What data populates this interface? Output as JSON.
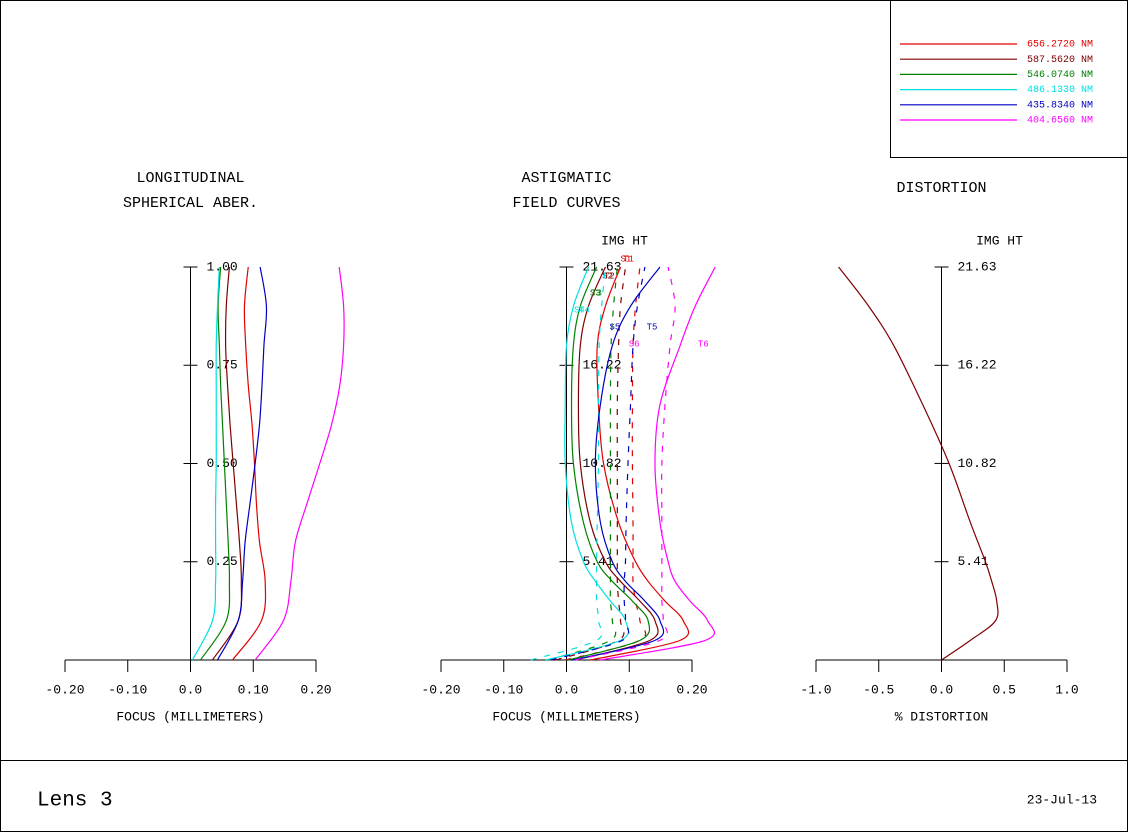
{
  "chart_data": [
    {
      "type": "line",
      "title": [
        "LONGITUDINAL",
        "SPHERICAL ABER."
      ],
      "xlabel": "FOCUS (MILLIMETERS)",
      "xlim": [
        -0.2,
        0.2
      ],
      "xticks": [
        {
          "value": -0.2,
          "label": "-0.20"
        },
        {
          "value": -0.1,
          "label": "-0.10"
        },
        {
          "value": 0,
          "label": "0.0"
        },
        {
          "value": 0.1,
          "label": "0.10"
        },
        {
          "value": 0.2,
          "label": "0.20"
        }
      ],
      "ylim": [
        0,
        1
      ],
      "yticks": [
        {
          "value": 0.25,
          "label": "0.25"
        },
        {
          "value": 0.5,
          "label": "0.50"
        },
        {
          "value": 0.75,
          "label": "0.75"
        },
        {
          "value": 1,
          "label": "1.00"
        }
      ],
      "legend": "upper right",
      "y": [
        0,
        0.1,
        0.2,
        0.3,
        0.4,
        0.5,
        0.6,
        0.7,
        0.8,
        0.9,
        1
      ],
      "series": [
        {
          "name": "656.2720 NM",
          "color": "#e00000",
          "values": [
            0.067,
            0.113,
            0.119,
            0.11,
            0.105,
            0.102,
            0.098,
            0.092,
            0.088,
            0.086,
            0.092
          ]
        },
        {
          "name": "587.5620 NM",
          "color": "#800000",
          "values": [
            0.035,
            0.076,
            0.081,
            0.078,
            0.073,
            0.068,
            0.063,
            0.059,
            0.056,
            0.057,
            0.062
          ]
        },
        {
          "name": "546.0740 NM",
          "color": "#008000",
          "values": [
            0.016,
            0.057,
            0.062,
            0.06,
            0.057,
            0.054,
            0.051,
            0.048,
            0.046,
            0.044,
            0.048
          ]
        },
        {
          "name": "486.1330 NM",
          "color": "#00e0e0",
          "values": [
            0.003,
            0.035,
            0.04,
            0.04,
            0.04,
            0.041,
            0.041,
            0.041,
            0.041,
            0.043,
            0.046
          ]
        },
        {
          "name": "435.8340 NM",
          "color": "#0000c0",
          "values": [
            0.043,
            0.076,
            0.083,
            0.087,
            0.095,
            0.103,
            0.11,
            0.114,
            0.117,
            0.121,
            0.111
          ]
        },
        {
          "name": "404.6560 NM",
          "color": "#ff00ff",
          "values": [
            0.103,
            0.148,
            0.16,
            0.167,
            0.186,
            0.206,
            0.225,
            0.238,
            0.244,
            0.244,
            0.237
          ]
        }
      ]
    },
    {
      "type": "line",
      "title": [
        "ASTIGMATIC",
        "FIELD CURVES"
      ],
      "xlabel": "FOCUS (MILLIMETERS)",
      "ylabel": "IMG HT",
      "xlim": [
        -0.2,
        0.2
      ],
      "xticks": [
        {
          "value": -0.2,
          "label": "-0.20"
        },
        {
          "value": -0.1,
          "label": "-0.10"
        },
        {
          "value": 0,
          "label": "0.0"
        },
        {
          "value": 0.1,
          "label": "0.10"
        },
        {
          "value": 0.2,
          "label": "0.20"
        }
      ],
      "ylim": [
        0,
        21.63
      ],
      "yticks": [
        5.41,
        10.82,
        16.22,
        21.63
      ],
      "y": [
        0,
        1.08,
        2.16,
        3.24,
        4.33,
        5.41,
        7.57,
        10.82,
        14.06,
        17.3,
        19.47,
        21.63
      ],
      "series": [
        {
          "name": "S1",
          "color": "#e00000",
          "dashed": true,
          "values": [
            -0.002,
            0.117,
            0.117,
            0.11,
            0.106,
            0.106,
            0.106,
            0.105,
            0.105,
            0.106,
            0.11,
            0.117
          ]
        },
        {
          "name": "T1",
          "color": "#e00000",
          "dashed": false,
          "values": [
            0.038,
            0.181,
            0.186,
            0.157,
            0.13,
            0.11,
            0.083,
            0.059,
            0.051,
            0.049,
            0.062,
            0.086
          ]
        },
        {
          "name": "S2",
          "color": "#800000",
          "dashed": true,
          "values": [
            -0.017,
            0.083,
            0.086,
            0.083,
            0.081,
            0.081,
            0.081,
            0.081,
            0.081,
            0.083,
            0.086,
            0.094
          ]
        },
        {
          "name": "T2",
          "color": "#800000",
          "dashed": false,
          "values": [
            0.014,
            0.133,
            0.141,
            0.117,
            0.086,
            0.062,
            0.038,
            0.022,
            0.019,
            0.022,
            0.035,
            0.062
          ]
        },
        {
          "name": "S3",
          "color": "#008000",
          "dashed": true,
          "values": [
            -0.029,
            0.07,
            0.073,
            0.07,
            0.07,
            0.07,
            0.07,
            0.07,
            0.07,
            0.071,
            0.075,
            0.081
          ]
        },
        {
          "name": "T3",
          "color": "#008000",
          "dashed": false,
          "values": [
            0.003,
            0.117,
            0.13,
            0.105,
            0.073,
            0.049,
            0.027,
            0.011,
            0.008,
            0.011,
            0.022,
            0.048
          ]
        },
        {
          "name": "S4",
          "color": "#00e0e0",
          "dashed": true,
          "values": [
            -0.057,
            0.048,
            0.051,
            0.048,
            0.048,
            0.048,
            0.049,
            0.051,
            0.051,
            0.052,
            0.056,
            0.062
          ]
        },
        {
          "name": "T4",
          "color": "#00e0e0",
          "dashed": false,
          "values": [
            -0.033,
            0.086,
            0.094,
            0.07,
            0.046,
            0.027,
            0.008,
            -0.002,
            -0.002,
            0,
            0.011,
            0.035
          ]
        },
        {
          "name": "S5",
          "color": "#0000c0",
          "dashed": true,
          "values": [
            -0.025,
            0.089,
            0.094,
            0.092,
            0.092,
            0.094,
            0.095,
            0.098,
            0.102,
            0.106,
            0.113,
            0.125
          ]
        },
        {
          "name": "T5",
          "color": "#0000c0",
          "dashed": false,
          "values": [
            0.01,
            0.141,
            0.149,
            0.125,
            0.094,
            0.073,
            0.054,
            0.046,
            0.054,
            0.073,
            0.102,
            0.149
          ]
        },
        {
          "name": "S6",
          "color": "#ff00ff",
          "dashed": true,
          "values": [
            0.014,
            0.149,
            0.154,
            0.152,
            0.152,
            0.152,
            0.152,
            0.152,
            0.157,
            0.165,
            0.173,
            0.162
          ]
        },
        {
          "name": "T6",
          "color": "#ff00ff",
          "dashed": false,
          "values": [
            0.054,
            0.221,
            0.225,
            0.197,
            0.173,
            0.162,
            0.149,
            0.141,
            0.149,
            0.181,
            0.205,
            0.237
          ]
        }
      ]
    },
    {
      "type": "line",
      "title": [
        "DISTORTION"
      ],
      "xlabel": "% DISTORTION",
      "ylabel": "IMG HT",
      "xlim": [
        -1,
        1
      ],
      "xticks": [
        {
          "value": -1,
          "label": "-1.0"
        },
        {
          "value": -0.5,
          "label": "-0.5"
        },
        {
          "value": 0,
          "label": "0.0"
        },
        {
          "value": 0.5,
          "label": "0.5"
        },
        {
          "value": 1,
          "label": "1.0"
        }
      ],
      "ylim": [
        0,
        21.63
      ],
      "yticks": [
        5.41,
        10.82,
        16.22,
        21.63
      ],
      "y": [
        0,
        1.08,
        2.16,
        3.24,
        4.33,
        5.41,
        7.57,
        10.82,
        14.06,
        17.3,
        19.47,
        21.63
      ],
      "series": [
        {
          "color": "#800000",
          "values": [
            0,
            0.23,
            0.43,
            0.44,
            0.4,
            0.35,
            0.23,
            0.06,
            -0.15,
            -0.38,
            -0.58,
            -0.82
          ]
        }
      ]
    }
  ],
  "footer": {
    "lens": "Lens 3",
    "date": "23-Jul-13"
  }
}
